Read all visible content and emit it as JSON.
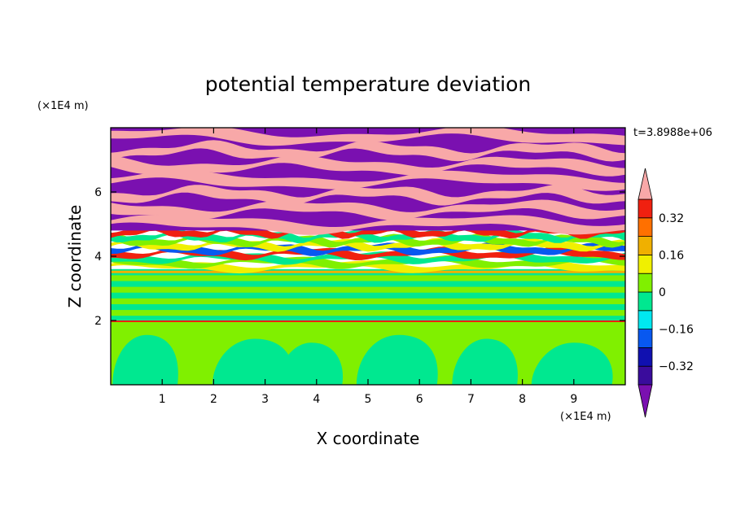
{
  "chart_data": {
    "type": "heatmap",
    "title": "potential temperature deviation",
    "time_label": "t=3.8988e+06",
    "xlabel": "X coordinate",
    "ylabel": "Z coordinate",
    "x_unit": "(×1E4 m)",
    "y_unit": "(×1E4 m)",
    "xlim": [
      0,
      10
    ],
    "ylim": [
      0,
      8
    ],
    "x_ticks": [
      "1",
      "2",
      "3",
      "4",
      "5",
      "6",
      "7",
      "8",
      "9"
    ],
    "y_ticks": [
      "2",
      "4",
      "6"
    ],
    "colorbar": {
      "levels": [
        -0.4,
        -0.32,
        -0.24,
        -0.16,
        -0.08,
        0,
        0.08,
        0.16,
        0.24,
        0.32,
        0.4
      ],
      "tick_labels": [
        "0.32",
        "0.16",
        "0",
        "−0.16",
        "−0.32"
      ],
      "tick_values": [
        0.32,
        0.16,
        0,
        -0.16,
        -0.32
      ],
      "colors_low_to_high": [
        "#3a0c9c",
        "#1010b0",
        "#0858f0",
        "#00e8f0",
        "#00e890",
        "#80f000",
        "#f0f000",
        "#f0b000",
        "#ff7000",
        "#f02010"
      ],
      "under_color": "#7a10b0",
      "over_color": "#f8a8a8"
    },
    "layers": [
      {
        "z_range": [
          0,
          1.8
        ],
        "pattern": "convective plumes",
        "base_color": "#80f000",
        "plume_color": "#00e890",
        "plume_x_centers": [
          0.7,
          2.8,
          3.9,
          5.6,
          7.3,
          9.0
        ]
      },
      {
        "z_range": [
          1.8,
          3.6
        ],
        "pattern": "horizontal stratified bands",
        "colors": [
          "#80f000",
          "#00e890"
        ]
      },
      {
        "z_range": [
          3.6,
          4.8
        ],
        "pattern": "turbulent mixing layer",
        "colors": [
          "#f0f000",
          "#80f000",
          "#00e890",
          "#f02010",
          "#0858f0"
        ]
      },
      {
        "z_range": [
          4.8,
          8.0
        ],
        "pattern": "alternating wavy bands",
        "colors": [
          "#7a10b0",
          "#f8a8a8"
        ]
      }
    ]
  }
}
